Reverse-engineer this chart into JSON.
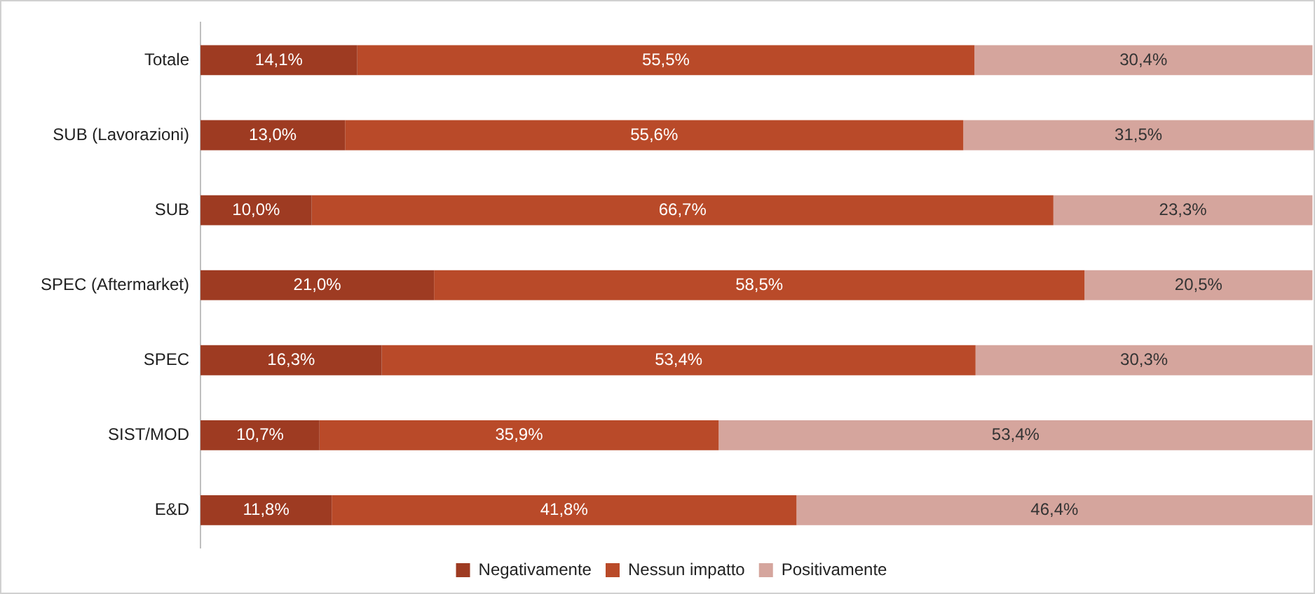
{
  "chart_data": {
    "type": "bar",
    "orientation": "horizontal",
    "stacked": true,
    "legend": "bottom",
    "tick_labels": "y",
    "categories": [
      "Totale",
      "SUB (Lavorazioni)",
      "SUB",
      "SPEC (Aftermarket)",
      "SPEC",
      "SIST/MOD",
      "E&D"
    ],
    "series": [
      {
        "name": "Negativamente",
        "color": "#9e3b22",
        "values": [
          14.1,
          13.0,
          10.0,
          21.0,
          16.3,
          10.7,
          11.8
        ],
        "value_labels": [
          "14,1%",
          "13,0%",
          "10,0%",
          "21,0%",
          "16,3%",
          "10,7%",
          "11,8%"
        ]
      },
      {
        "name": "Nessun impatto",
        "color": "#b94a29",
        "values": [
          55.5,
          55.6,
          66.7,
          58.5,
          53.4,
          35.9,
          41.8
        ],
        "value_labels": [
          "55,5%",
          "55,6%",
          "66,7%",
          "58,5%",
          "53,4%",
          "35,9%",
          "41,8%"
        ]
      },
      {
        "name": "Positivamente",
        "color": "#d5a59d",
        "values": [
          30.4,
          31.5,
          23.3,
          20.5,
          30.3,
          53.4,
          46.4
        ],
        "value_labels": [
          "30,4%",
          "31,5%",
          "23,3%",
          "20,5%",
          "30,3%",
          "53,4%",
          "46,4%"
        ]
      }
    ]
  }
}
